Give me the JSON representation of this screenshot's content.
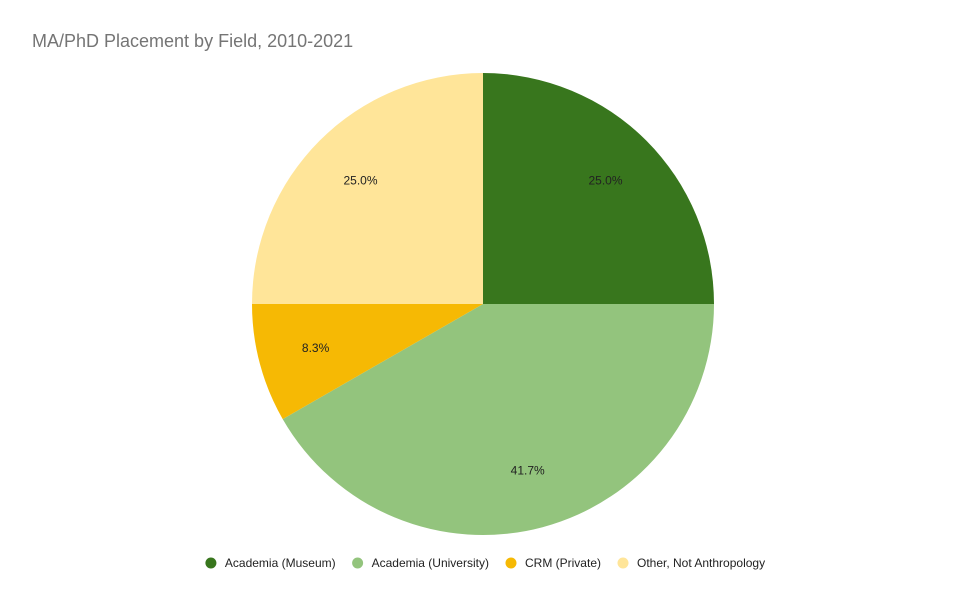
{
  "chart_data": {
    "type": "pie",
    "title": "MA/PhD Placement by Field, 2010-2021",
    "categories": [
      "Academia (Museum)",
      "Academia (University)",
      "CRM (Private)",
      "Other, Not Anthropology"
    ],
    "values": [
      25,
      41.7,
      8.3,
      25
    ],
    "value_labels": [
      "25.0%",
      "41.7%",
      "8.3%",
      "25.0%"
    ],
    "colors": [
      "#38761d",
      "#93c47d",
      "#f6b904",
      "#ffe599"
    ],
    "legend": "bottom"
  }
}
